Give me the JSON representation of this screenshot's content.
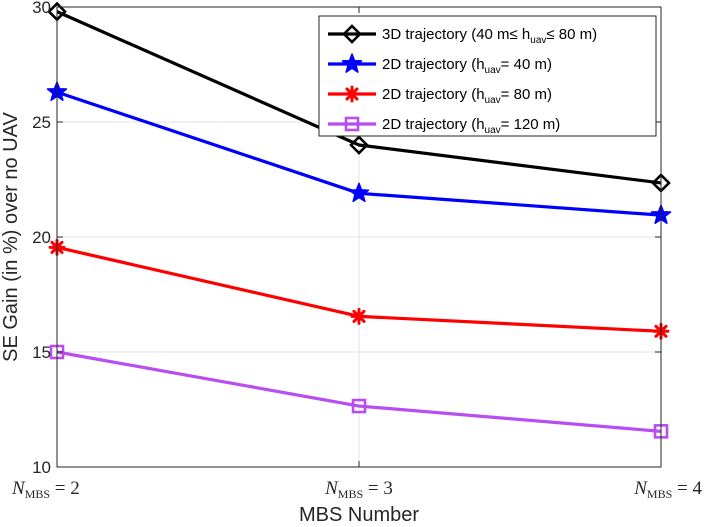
{
  "chart_data": {
    "type": "line",
    "title": "",
    "xlabel": "MBS Number",
    "ylabel": "SE Gain (in %) over no UAV",
    "ylim": [
      10,
      30
    ],
    "yticks": [
      "10",
      "15",
      "20",
      "25",
      "30"
    ],
    "grid": true,
    "legend_position": "top-right",
    "categories": [
      {
        "base": "N",
        "sub": "MBS",
        "rest": " = 2"
      },
      {
        "base": "N",
        "sub": "MBS",
        "rest": " = 3"
      },
      {
        "base": "N",
        "sub": "MBS",
        "rest": " = 4"
      }
    ],
    "series": [
      {
        "name": "3D trajectory (40 m≤ huav≤ 80 m)",
        "label_parts": [
          [
            "3D trajectory (40 m≤ h",
            ""
          ],
          [
            "uav",
            "sub"
          ],
          [
            "≤ 80 m)",
            ""
          ]
        ],
        "color": "#000000",
        "marker": "diamond",
        "values": [
          29.8,
          24.0,
          22.35
        ]
      },
      {
        "name": "2D trajectory (huav= 40 m)",
        "label_parts": [
          [
            "2D trajectory (h",
            ""
          ],
          [
            "uav",
            "sub"
          ],
          [
            "= 40 m)",
            ""
          ]
        ],
        "color": "#0000ff",
        "marker": "star",
        "values": [
          26.3,
          21.9,
          20.95
        ]
      },
      {
        "name": "2D trajectory (huav= 80 m)",
        "label_parts": [
          [
            "2D trajectory (h",
            ""
          ],
          [
            "uav",
            "sub"
          ],
          [
            "= 80 m)",
            ""
          ]
        ],
        "color": "#ff0000",
        "marker": "asterisk",
        "values": [
          19.55,
          16.55,
          15.9
        ]
      },
      {
        "name": "2D trajectory (huav= 120 m)",
        "label_parts": [
          [
            "2D trajectory (h",
            ""
          ],
          [
            "uav",
            "sub"
          ],
          [
            "= 120 m)",
            ""
          ]
        ],
        "color": "#b84ef0",
        "marker": "square",
        "values": [
          15.0,
          12.65,
          11.55
        ]
      }
    ]
  }
}
